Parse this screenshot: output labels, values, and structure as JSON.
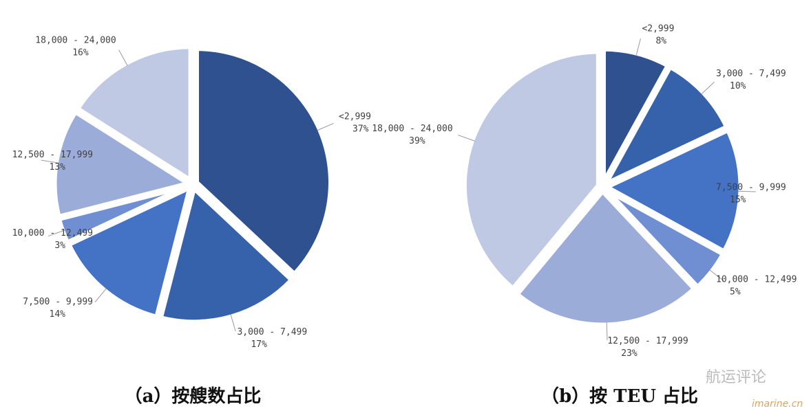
{
  "chart_data": [
    {
      "type": "pie",
      "title": "（a）按艘数占比",
      "categories": [
        "<2,999",
        "3,000 - 7,499",
        "7,500 - 9,999",
        "10,000 - 12,499",
        "12,500 - 17,999",
        "18,000 - 24,000"
      ],
      "values": [
        37,
        17,
        14,
        3,
        13,
        16
      ],
      "value_labels": [
        "37%",
        "17%",
        "14%",
        "3%",
        "13%",
        "16%"
      ],
      "colors": [
        "#2f5190",
        "#3562ab",
        "#4472c4",
        "#6f8fd2",
        "#9cacd8",
        "#bfc9e4"
      ]
    },
    {
      "type": "pie",
      "title": "（b）按 TEU 占比",
      "categories": [
        "<2,999",
        "3,000 - 7,499",
        "7,500 - 9,999",
        "10,000 - 12,499",
        "12,500 - 17,999",
        "18,000 - 24,000"
      ],
      "values": [
        8,
        10,
        15,
        5,
        23,
        39
      ],
      "value_labels": [
        "8%",
        "10%",
        "15%",
        "5%",
        "23%",
        "39%"
      ],
      "colors": [
        "#2f5190",
        "#3562ab",
        "#4472c4",
        "#6f8fd2",
        "#9cacd8",
        "#bfc9e4"
      ]
    }
  ],
  "watermark": {
    "account": "航运评论",
    "site": "imarine.cn"
  }
}
